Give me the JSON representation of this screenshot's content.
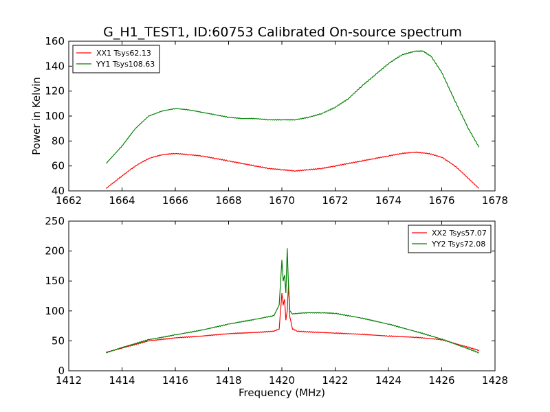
{
  "figure": {
    "title": "G_H1_TEST1, ID:60753 Calibrated On-source spectrum"
  },
  "chart_data": [
    {
      "type": "line",
      "title": "G_H1_TEST1, ID:60753 Calibrated On-source spectrum",
      "xlabel": "",
      "ylabel": "Power in Kelvin",
      "xlim": [
        1662,
        1678
      ],
      "ylim": [
        40,
        160
      ],
      "xticks": [
        1662,
        1664,
        1666,
        1668,
        1670,
        1672,
        1674,
        1676,
        1678
      ],
      "yticks": [
        40,
        60,
        80,
        100,
        120,
        140,
        160
      ],
      "grid": false,
      "legend_position": "top-left",
      "series": [
        {
          "name": "XX1 Tsys62.13",
          "color": "#ff0000",
          "x": [
            1663.4,
            1664.0,
            1664.5,
            1665.0,
            1665.5,
            1666.0,
            1666.5,
            1667.0,
            1667.5,
            1668.0,
            1668.5,
            1669.0,
            1669.5,
            1670.0,
            1670.5,
            1671.0,
            1671.5,
            1672.0,
            1672.5,
            1673.0,
            1673.5,
            1674.0,
            1674.5,
            1675.0,
            1675.5,
            1676.0,
            1676.5,
            1677.0,
            1677.4
          ],
          "y": [
            42,
            52,
            60,
            66,
            69,
            70,
            69,
            68,
            66,
            64,
            62,
            60,
            58,
            57,
            56,
            57,
            58,
            60,
            62,
            64,
            66,
            68,
            70,
            71,
            70,
            67,
            60,
            50,
            42
          ]
        },
        {
          "name": "YY1 Tsys108.63",
          "color": "#008000",
          "x": [
            1663.4,
            1664.0,
            1664.5,
            1665.0,
            1665.5,
            1666.0,
            1666.5,
            1667.0,
            1667.5,
            1668.0,
            1668.5,
            1669.0,
            1669.5,
            1670.0,
            1670.5,
            1671.0,
            1671.5,
            1672.0,
            1672.5,
            1673.0,
            1673.5,
            1674.0,
            1674.5,
            1675.0,
            1675.3,
            1675.6,
            1676.0,
            1676.5,
            1677.0,
            1677.4
          ],
          "y": [
            62,
            76,
            90,
            100,
            104,
            106,
            105,
            103,
            101,
            99,
            98,
            98,
            97,
            97,
            97,
            99,
            102,
            107,
            114,
            124,
            133,
            142,
            149,
            152,
            152,
            148,
            135,
            112,
            90,
            75
          ]
        }
      ]
    },
    {
      "type": "line",
      "title": "",
      "xlabel": "Frequency (MHz)",
      "ylabel": "",
      "xlim": [
        1412,
        1428
      ],
      "ylim": [
        0,
        250
      ],
      "xticks": [
        1412,
        1414,
        1416,
        1418,
        1420,
        1422,
        1424,
        1426,
        1428
      ],
      "yticks": [
        0,
        50,
        100,
        150,
        200,
        250
      ],
      "grid": false,
      "legend_position": "top-right",
      "series": [
        {
          "name": "XX2 Tsys57.07",
          "color": "#ff0000",
          "x": [
            1413.4,
            1414.0,
            1415.0,
            1416.0,
            1417.0,
            1418.0,
            1419.0,
            1419.7,
            1419.9,
            1420.0,
            1420.05,
            1420.1,
            1420.15,
            1420.2,
            1420.25,
            1420.3,
            1420.4,
            1420.6,
            1421.0,
            1422.0,
            1423.0,
            1424.0,
            1425.0,
            1426.0,
            1427.4
          ],
          "y": [
            31,
            38,
            50,
            55,
            58,
            62,
            64,
            66,
            70,
            130,
            110,
            120,
            85,
            100,
            145,
            90,
            70,
            66,
            65,
            63,
            61,
            58,
            56,
            52,
            34
          ]
        },
        {
          "name": "YY2 Tsys72.08",
          "color": "#008000",
          "x": [
            1413.4,
            1414.0,
            1415.0,
            1416.0,
            1417.0,
            1418.0,
            1419.0,
            1419.7,
            1419.9,
            1420.0,
            1420.05,
            1420.1,
            1420.15,
            1420.2,
            1420.25,
            1420.3,
            1420.4,
            1420.6,
            1421.0,
            1421.5,
            1422.0,
            1423.0,
            1424.0,
            1425.0,
            1426.0,
            1427.4
          ],
          "y": [
            30,
            39,
            52,
            60,
            68,
            78,
            86,
            92,
            110,
            185,
            150,
            160,
            130,
            205,
            140,
            100,
            95,
            96,
            97,
            97,
            96,
            88,
            78,
            66,
            53,
            30
          ]
        }
      ]
    }
  ]
}
